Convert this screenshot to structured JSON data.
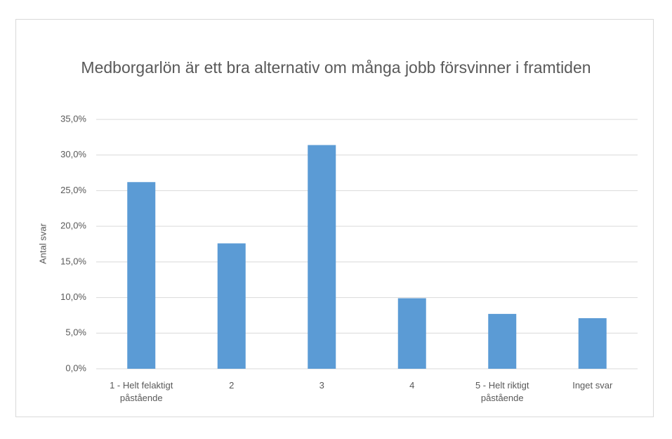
{
  "chart_data": {
    "type": "bar",
    "title": "Medborgarlön är ett bra alternativ om många jobb försvinner i framtiden",
    "y_label": "Antal svar",
    "categories": [
      "1 - Helt felaktigt påstående",
      "2",
      "3",
      "4",
      "5 - Helt riktigt påstående",
      "Inget svar"
    ],
    "values": [
      26.2,
      17.6,
      31.4,
      9.9,
      7.7,
      7.1
    ],
    "color": "#5b9bd5",
    "ylim": [
      0,
      35
    ],
    "yticks": [
      {
        "value": 0,
        "label": "0,0%"
      },
      {
        "value": 5,
        "label": "5,0%"
      },
      {
        "value": 10,
        "label": "10,0%"
      },
      {
        "value": 15,
        "label": "15,0%"
      },
      {
        "value": 20,
        "label": "20,0%"
      },
      {
        "value": 25,
        "label": "25,0%"
      },
      {
        "value": 30,
        "label": "30,0%"
      },
      {
        "value": 35,
        "label": "35,0%"
      }
    ],
    "grid": true
  }
}
